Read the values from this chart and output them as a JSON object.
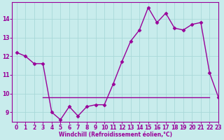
{
  "line1_x": [
    0,
    1,
    2,
    3,
    4,
    5,
    6,
    7,
    8,
    9,
    10,
    11,
    12,
    13,
    14,
    15,
    16,
    17,
    18,
    19,
    20,
    21,
    22,
    23
  ],
  "line1_y": [
    12.2,
    12.0,
    11.6,
    11.6,
    9.0,
    8.6,
    9.3,
    8.8,
    9.3,
    9.4,
    9.4,
    10.5,
    11.7,
    12.8,
    13.4,
    14.6,
    13.8,
    14.3,
    13.5,
    13.4,
    13.7,
    13.8,
    11.1,
    9.8
  ],
  "line2_x": [
    3,
    22
  ],
  "line2_y": [
    9.8,
    9.8
  ],
  "color": "#990099",
  "bgcolor": "#c8ecec",
  "xlim": [
    -0.5,
    23
  ],
  "ylim": [
    8.5,
    14.9
  ],
  "yticks": [
    9,
    10,
    11,
    12,
    13,
    14
  ],
  "xticks": [
    0,
    1,
    2,
    3,
    4,
    5,
    6,
    7,
    8,
    9,
    10,
    11,
    12,
    13,
    14,
    15,
    16,
    17,
    18,
    19,
    20,
    21,
    22,
    23
  ],
  "xlabel": "Windchill (Refroidissement éolien,°C)",
  "marker": "D",
  "markersize": 2.5,
  "linewidth": 1.0,
  "grid_color": "#a8d8d8",
  "font_size_ticks": 5.5,
  "font_size_xlabel": 5.5
}
